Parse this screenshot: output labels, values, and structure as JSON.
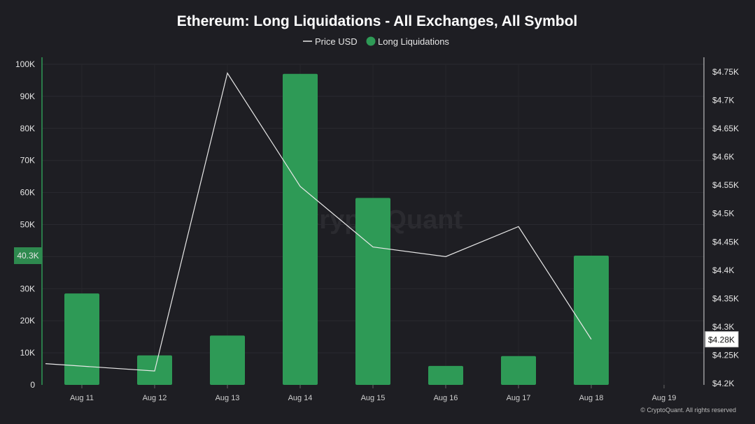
{
  "chart_data": {
    "type": "bar",
    "title": "Ethereum: Long Liquidations - All Exchanges, All Symbol",
    "categories": [
      "Aug 11",
      "Aug 12",
      "Aug 13",
      "Aug 14",
      "Aug 15",
      "Aug 16",
      "Aug 17",
      "Aug 18",
      "Aug 19"
    ],
    "series": [
      {
        "name": "Long Liquidations",
        "type": "bar",
        "axis": "left",
        "color": "#2e9a56",
        "values": [
          28500,
          9200,
          15400,
          97000,
          58300,
          5900,
          9000,
          40300,
          null
        ]
      },
      {
        "name": "Price USD",
        "type": "line",
        "axis": "right",
        "color": "#e8e8e8",
        "values": [
          4235,
          4222,
          4748,
          4548,
          4441,
          4424,
          4477,
          4278,
          null
        ]
      }
    ],
    "y_left": {
      "ticks": [
        "100K",
        "90K",
        "80K",
        "70K",
        "60K",
        "50K",
        "30K",
        "20K",
        "10K",
        "0"
      ],
      "ylim": [
        0,
        100000
      ],
      "highlight": "40.3K"
    },
    "y_right": {
      "ticks": [
        "$4.75K",
        "$4.7K",
        "$4.65K",
        "$4.6K",
        "$4.55K",
        "$4.5K",
        "$4.45K",
        "$4.4K",
        "$4.35K",
        "$4.3K",
        "$4.25K",
        "$4.2K"
      ],
      "ylim": [
        4200,
        4760
      ],
      "highlight": "$4.28K"
    },
    "legend": [
      "Price USD",
      "Long Liquidations"
    ],
    "legend_position": "top-center",
    "grid": true
  },
  "watermark": "CryptoQuant",
  "copyright": "© CryptoQuant. All rights reserved"
}
